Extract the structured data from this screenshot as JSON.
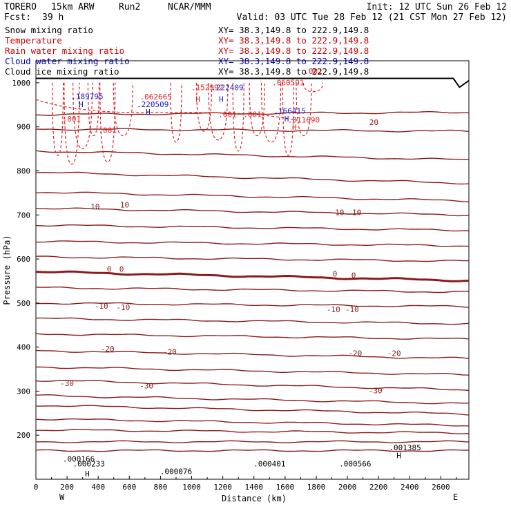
{
  "header": {
    "model": "TORERO",
    "resolution": "15km ARW",
    "run": "Run2",
    "org": "NCAR/MMM",
    "init": "Init: 12 UTC Sun 26 Feb 12",
    "fcst_label": "Fcst:",
    "fcst_value": "39 h",
    "valid": "Valid: 03 UTC Tue 28 Feb 12 (21 CST Mon 27 Feb 12)"
  },
  "fields": [
    {
      "name": "Snow mixing ratio",
      "color": "#000000",
      "xy": "XY= 38.3,149.8 to 222.9,149.8"
    },
    {
      "name": "Temperature",
      "color": "#cc0000",
      "xy": "XY= 38.3,149.8 to 222.9,149.8"
    },
    {
      "name": "Rain water mixing ratio",
      "color": "#cc0000",
      "xy": "XY= 38.3,149.8 to 222.9,149.8"
    },
    {
      "name": "Cloud water mixing ratio",
      "color": "#0000cc",
      "xy": "XY= 38.3,149.8 to 222.9,149.8"
    },
    {
      "name": "Cloud ice mixing ratio",
      "color": "#000000",
      "xy": "XY= 38.3,149.8 to 222.9,149.8"
    }
  ],
  "chart_data": {
    "type": "line",
    "xlabel": "Distance (km)",
    "ylabel": "Pressure (hPa)",
    "xlim": [
      0,
      2780
    ],
    "ylim": [
      1050,
      100
    ],
    "x_ticks": [
      0,
      200,
      400,
      600,
      800,
      1000,
      1200,
      1400,
      1600,
      1800,
      2000,
      2200,
      2400,
      2600
    ],
    "y_ticks": [
      200,
      300,
      400,
      500,
      600,
      700,
      800,
      900,
      1000
    ],
    "x_end_labels": {
      "left": "W",
      "right": "E"
    },
    "colors": {
      "temperature": "#8b1a1a",
      "rain": "#e02020",
      "cloud_water": "#1a1acc",
      "snow": "#000000",
      "terrain": "#000000"
    },
    "temperature_contours": [
      {
        "pressure": 165,
        "dp": 0,
        "label": ""
      },
      {
        "pressure": 185,
        "dp": 0,
        "label": ""
      },
      {
        "pressure": 212,
        "dp": -7,
        "label": ""
      },
      {
        "pressure": 237,
        "dp": -15,
        "label": ""
      },
      {
        "pressure": 268,
        "dp": -20,
        "label": ""
      },
      {
        "pressure": 290,
        "dp": -18,
        "label": "-30"
      },
      {
        "pressure": 325,
        "dp": -22,
        "label": ""
      },
      {
        "pressure": 355,
        "dp": -18,
        "label": "-20"
      },
      {
        "pressure": 392,
        "dp": -18,
        "label": ""
      },
      {
        "pressure": 430,
        "dp": -12,
        "label": ""
      },
      {
        "pressure": 465,
        "dp": -12,
        "label": "-10"
      },
      {
        "pressure": 500,
        "dp": -8,
        "label": ""
      },
      {
        "pressure": 535,
        "dp": -10,
        "label": ""
      },
      {
        "pressure": 571,
        "dp": -20,
        "label": "0",
        "bold": true
      },
      {
        "pressure": 605,
        "dp": -10,
        "label": ""
      },
      {
        "pressure": 640,
        "dp": -10,
        "label": ""
      },
      {
        "pressure": 677,
        "dp": -12,
        "label": ""
      },
      {
        "pressure": 715,
        "dp": -15,
        "label": "10"
      },
      {
        "pressure": 752,
        "dp": -20,
        "label": ""
      },
      {
        "pressure": 797,
        "dp": -25,
        "label": ""
      },
      {
        "pressure": 845,
        "dp": -20,
        "label": ""
      },
      {
        "pressure": 895,
        "dp": -5,
        "label": ""
      },
      {
        "pressure": 928,
        "dp": 5,
        "label": "20"
      }
    ],
    "contour_labels": [
      {
        "x": 275,
        "p": 140,
        "text": ".000166",
        "color": "#000000"
      },
      {
        "x": 340,
        "p": 129,
        "text": ".000233",
        "color": "#000000"
      },
      {
        "x": 900,
        "p": 112,
        "text": ".000076",
        "color": "#000000"
      },
      {
        "x": 1500,
        "p": 129,
        "text": ".000401",
        "color": "#000000"
      },
      {
        "x": 2050,
        "p": 129,
        "text": ".000566",
        "color": "#000000"
      },
      {
        "x": 2370,
        "p": 166,
        "text": ".001385",
        "color": "#000000"
      },
      {
        "x": 2330,
        "p": 148,
        "text": "H",
        "color": "#000000"
      },
      {
        "x": 330,
        "p": 106,
        "text": "H",
        "color": "#000000"
      },
      {
        "x": 200,
        "p": 312,
        "text": "-30",
        "color": "#8b1a1a"
      },
      {
        "x": 710,
        "p": 306,
        "text": "-30",
        "color": "#8b1a1a"
      },
      {
        "x": 2180,
        "p": 295,
        "text": "-30",
        "color": "#8b1a1a"
      },
      {
        "x": 460,
        "p": 390,
        "text": "-20",
        "color": "#8b1a1a"
      },
      {
        "x": 860,
        "p": 383,
        "text": "-20",
        "color": "#8b1a1a"
      },
      {
        "x": 2050,
        "p": 380,
        "text": "-20",
        "color": "#8b1a1a"
      },
      {
        "x": 2300,
        "p": 380,
        "text": "-20",
        "color": "#8b1a1a"
      },
      {
        "x": 420,
        "p": 487,
        "text": "-10",
        "color": "#8b1a1a"
      },
      {
        "x": 560,
        "p": 484,
        "text": "-10",
        "color": "#8b1a1a"
      },
      {
        "x": 1910,
        "p": 479,
        "text": "-10",
        "color": "#8b1a1a"
      },
      {
        "x": 2030,
        "p": 479,
        "text": "-10",
        "color": "#8b1a1a"
      },
      {
        "x": 470,
        "p": 571,
        "text": "0",
        "color": "#8b1a1a"
      },
      {
        "x": 550,
        "p": 571,
        "text": "0",
        "color": "#8b1a1a"
      },
      {
        "x": 1920,
        "p": 560,
        "text": "0",
        "color": "#8b1a1a"
      },
      {
        "x": 2040,
        "p": 557,
        "text": "0",
        "color": "#8b1a1a"
      },
      {
        "x": 380,
        "p": 713,
        "text": "10",
        "color": "#8b1a1a"
      },
      {
        "x": 570,
        "p": 717,
        "text": "10",
        "color": "#8b1a1a"
      },
      {
        "x": 1950,
        "p": 700,
        "text": "10",
        "color": "#8b1a1a"
      },
      {
        "x": 2060,
        "p": 700,
        "text": "10",
        "color": "#8b1a1a"
      },
      {
        "x": 2170,
        "p": 904,
        "text": "20",
        "color": "#8b1a1a"
      },
      {
        "x": 230,
        "p": 912,
        "text": ".001",
        "color": "#e02020"
      },
      {
        "x": 460,
        "p": 886,
        "text": ".001",
        "color": "#e02020"
      },
      {
        "x": 1230,
        "p": 922,
        "text": ".001",
        "color": "#e02020"
      },
      {
        "x": 1390,
        "p": 922,
        "text": ".001",
        "color": "#e02020"
      },
      {
        "x": 1780,
        "p": 1020,
        "text": ".001",
        "color": "#e02020"
      },
      {
        "x": 770,
        "p": 962,
        "text": ".062665",
        "color": "#e02020"
      },
      {
        "x": 1100,
        "p": 983,
        "text": ".152992",
        "color": "#e02020"
      },
      {
        "x": 1620,
        "p": 994,
        "text": ".060591",
        "color": "#e02020"
      },
      {
        "x": 1720,
        "p": 910,
        "text": ".011690",
        "color": "#e02020"
      },
      {
        "x": 1660,
        "p": 893,
        "text": "H",
        "color": "#e02020"
      },
      {
        "x": 1040,
        "p": 957,
        "text": "H",
        "color": "#e02020"
      },
      {
        "x": 330,
        "p": 963,
        "text": ".189795",
        "color": "#1a1acc"
      },
      {
        "x": 750,
        "p": 945,
        "text": ".220509",
        "color": "#1a1acc"
      },
      {
        "x": 1230,
        "p": 983,
        "text": ".222409",
        "color": "#1a1acc"
      },
      {
        "x": 1630,
        "p": 930,
        "text": ".166415",
        "color": "#1a1acc"
      },
      {
        "x": 290,
        "p": 945,
        "text": "H",
        "color": "#1a1acc"
      },
      {
        "x": 720,
        "p": 928,
        "text": "H",
        "color": "#1a1acc"
      },
      {
        "x": 1190,
        "p": 957,
        "text": "H",
        "color": "#1a1acc"
      },
      {
        "x": 1610,
        "p": 912,
        "text": "H",
        "color": "#1a1acc"
      }
    ]
  }
}
